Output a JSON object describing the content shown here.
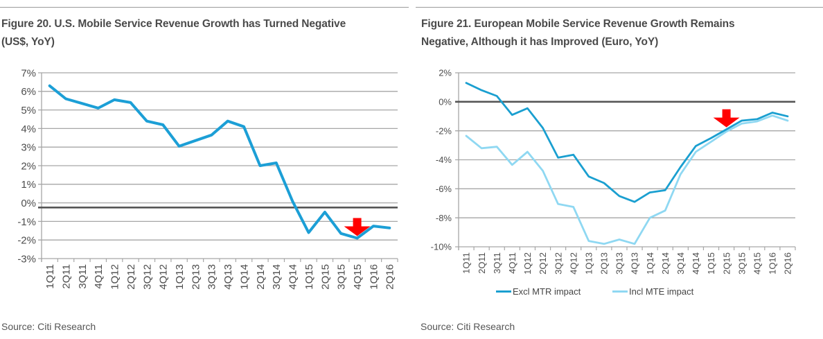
{
  "figures": [
    {
      "title_line1": "Figure 20. U.S. Mobile Service Revenue Growth has Turned Negative",
      "title_line2": "(US$, YoY)",
      "source": "Source: Citi Research"
    },
    {
      "title_line1": "Figure 21. European Mobile Service Revenue Growth Remains",
      "title_line2": "Negative, Although it has Improved (Euro, YoY)",
      "source": "Source: Citi Research"
    }
  ],
  "colors": {
    "series_dark": "#1a9fd0",
    "series_light": "#8fd8f2",
    "left_series": "#1c9fd6",
    "baseline": "#555555",
    "grid": "#a6a6a6",
    "arrow": "#ff0000"
  },
  "chart_data": [
    {
      "type": "line",
      "title": "Figure 20. U.S. Mobile Service Revenue Growth has Turned Negative (US$, YoY)",
      "xlabel": "",
      "ylabel": "",
      "ylim": [
        -3,
        7
      ],
      "yticks": [
        7,
        6,
        5,
        4,
        3,
        2,
        1,
        0,
        -1,
        -2,
        -3
      ],
      "ytick_labels": [
        "7%",
        "6%",
        "5%",
        "4%",
        "3%",
        "2%",
        "1%",
        "0%",
        "-1%",
        "-2%",
        "-3%"
      ],
      "grid": true,
      "reference_line": -0.25,
      "categories": [
        "1Q11",
        "2Q11",
        "3Q11",
        "4Q11",
        "1Q12",
        "2Q12",
        "3Q12",
        "4Q12",
        "1Q13",
        "2Q13",
        "3Q13",
        "4Q13",
        "1Q14",
        "2Q14",
        "3Q14",
        "4Q14",
        "1Q15",
        "2Q15",
        "3Q15",
        "4Q15",
        "1Q16",
        "2Q16"
      ],
      "series": [
        {
          "name": "US mobile service revenue growth",
          "values": [
            6.3,
            5.6,
            5.35,
            5.1,
            5.55,
            5.4,
            4.4,
            4.2,
            3.05,
            3.35,
            3.65,
            4.4,
            4.1,
            2.0,
            2.15,
            0.1,
            -1.6,
            -0.5,
            -1.65,
            -1.9,
            -1.25,
            -1.35
          ]
        }
      ],
      "annotations": [
        {
          "type": "down-arrow",
          "category": "4Q15",
          "value": -1.9
        }
      ],
      "legend": null
    },
    {
      "type": "line",
      "title": "Figure 21. European Mobile Service Revenue Growth Remains Negative, Although it has Improved (Euro, YoY)",
      "xlabel": "",
      "ylabel": "",
      "ylim": [
        -10,
        2
      ],
      "yticks": [
        2,
        0,
        -2,
        -4,
        -6,
        -8,
        -10
      ],
      "ytick_labels": [
        "2%",
        "0%",
        "-2%",
        "-4%",
        "-6%",
        "-8%",
        "-10%"
      ],
      "grid": true,
      "reference_line": 0,
      "categories": [
        "1Q11",
        "2Q11",
        "3Q11",
        "4Q11",
        "1Q12",
        "2Q12",
        "3Q12",
        "4Q12",
        "1Q13",
        "2Q13",
        "3Q13",
        "4Q13",
        "1Q14",
        "2Q14",
        "3Q14",
        "4Q14",
        "1Q15",
        "2Q15",
        "3Q15",
        "4Q15",
        "1Q16",
        "2Q16"
      ],
      "series": [
        {
          "name": "Excl MTR impact",
          "values": [
            1.3,
            0.8,
            0.4,
            -0.9,
            -0.45,
            -1.8,
            -3.85,
            -3.65,
            -5.15,
            -5.6,
            -6.5,
            -6.9,
            -6.25,
            -6.1,
            -4.5,
            -3.05,
            -2.5,
            -1.9,
            -1.3,
            -1.2,
            -0.75,
            -1.0
          ]
        },
        {
          "name": "Incl MTE impact",
          "values": [
            -2.35,
            -3.2,
            -3.1,
            -4.35,
            -3.45,
            -4.75,
            -7.05,
            -7.25,
            -9.6,
            -9.8,
            -9.5,
            -9.8,
            -8.0,
            -7.5,
            -5.0,
            -3.45,
            -2.75,
            -2.05,
            -1.5,
            -1.35,
            -0.95,
            -1.3
          ]
        }
      ],
      "annotations": [
        {
          "type": "down-arrow",
          "category": "2Q15",
          "value": -1.9
        }
      ],
      "legend": {
        "placement": "bottom",
        "entries": [
          "Excl MTR impact",
          "Incl MTE impact"
        ]
      }
    }
  ]
}
